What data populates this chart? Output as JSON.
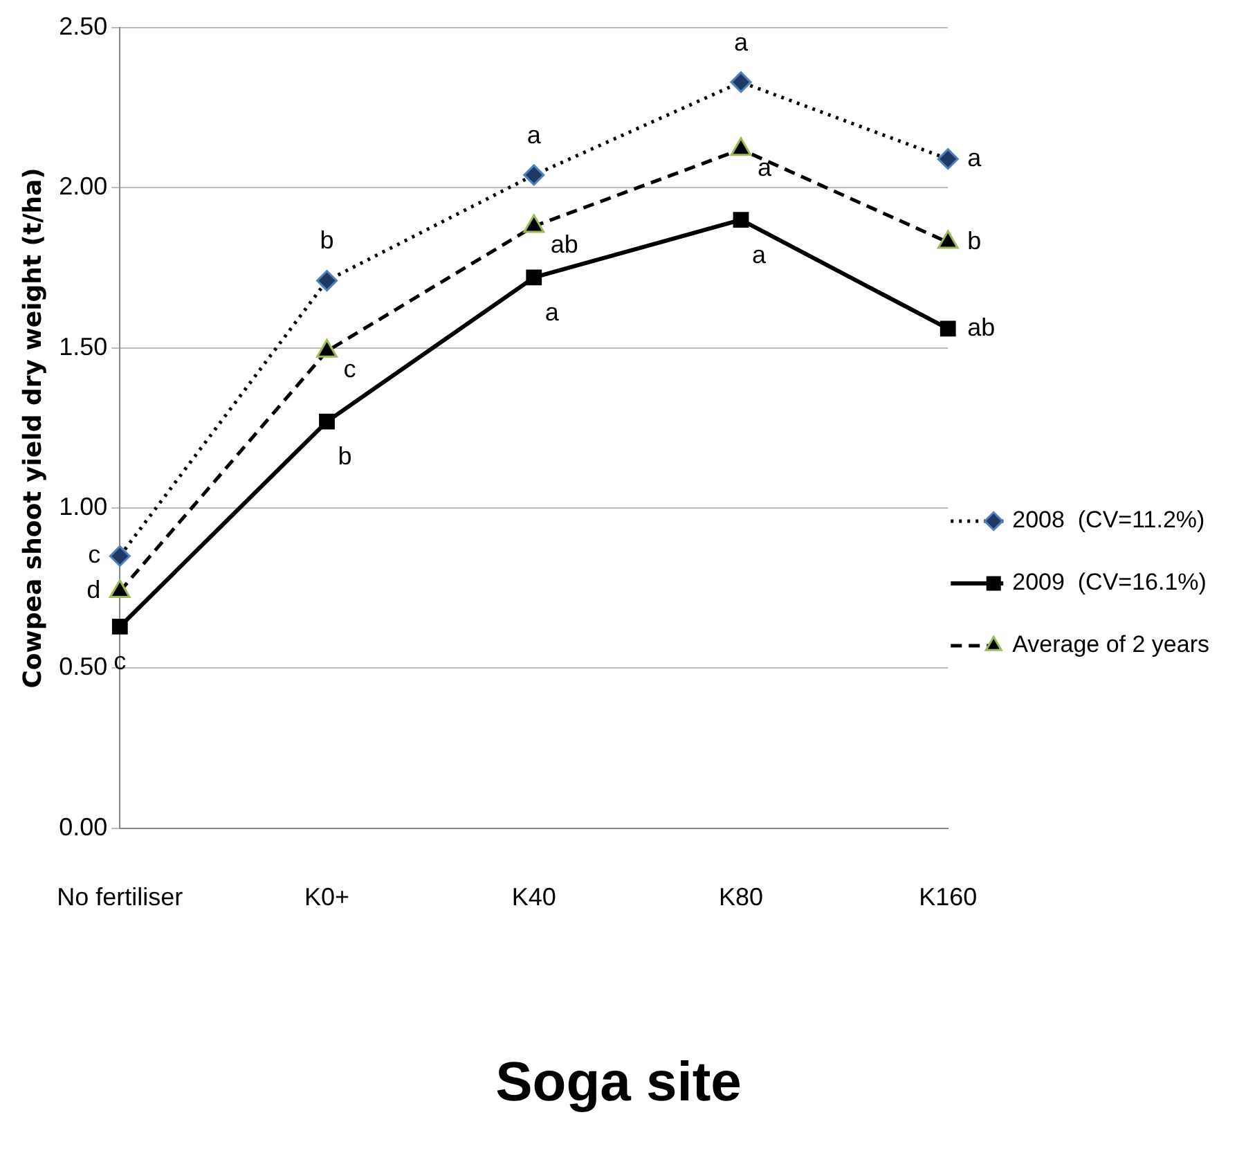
{
  "chart_data": {
    "type": "line",
    "title": "Soga site",
    "ylabel": "Cowpea shoot yield dry weight (t/ha)",
    "categories": [
      "No fertiliser",
      "K0+",
      "K40",
      "K80",
      "K160"
    ],
    "series": [
      {
        "name": "2008  (CV=11.2%)",
        "color": "#000000",
        "marker": "diamond",
        "line_style": "dotted",
        "values": [
          0.85,
          1.71,
          2.04,
          2.33,
          2.09
        ]
      },
      {
        "name": "2009  (CV=16.1%)",
        "color": "#000000",
        "marker": "square",
        "line_style": "solid",
        "values": [
          0.63,
          1.27,
          1.72,
          1.9,
          1.56
        ]
      },
      {
        "name": "Average of 2 years",
        "color": "#000000",
        "marker": "triangle",
        "line_style": "dashed",
        "values": [
          0.74,
          1.49,
          1.88,
          2.12,
          1.83
        ]
      }
    ],
    "ylim": [
      0,
      2.5
    ],
    "yticks": [
      {
        "value": 0,
        "label": "0.00"
      },
      {
        "value": 0.5,
        "label": "0.50"
      },
      {
        "value": 1,
        "label": "1.00"
      },
      {
        "value": 1.5,
        "label": "1.50"
      },
      {
        "value": 2,
        "label": "2.00"
      },
      {
        "value": 2.5,
        "label": "2.50"
      }
    ],
    "grid": "y",
    "legend": "right",
    "annotations": [
      {
        "text": "c",
        "x": "No fertiliser",
        "y": 0.85
      },
      {
        "text": "d",
        "x": "No fertiliser",
        "y": 0.74
      },
      {
        "text": "c",
        "x": "No fertiliser",
        "y": 0.63
      },
      {
        "text": "b",
        "x": "K0+",
        "y": 1.71
      },
      {
        "text": "c",
        "x": "K0+",
        "y": 1.49
      },
      {
        "text": "b",
        "x": "K0+",
        "y": 1.27
      },
      {
        "text": "a",
        "x": "K40",
        "y": 2.04
      },
      {
        "text": "ab",
        "x": "K40",
        "y": 1.88
      },
      {
        "text": "a",
        "x": "K40",
        "y": 1.72
      },
      {
        "text": "a",
        "x": "K80",
        "y": 2.33
      },
      {
        "text": "a",
        "x": "K80",
        "y": 2.12
      },
      {
        "text": "a",
        "x": "K80",
        "y": 1.9
      },
      {
        "text": "a",
        "x": "K160",
        "y": 2.09
      },
      {
        "text": "b",
        "x": "K160",
        "y": 1.83
      },
      {
        "text": "ab",
        "x": "K160",
        "y": 1.56
      }
    ]
  }
}
